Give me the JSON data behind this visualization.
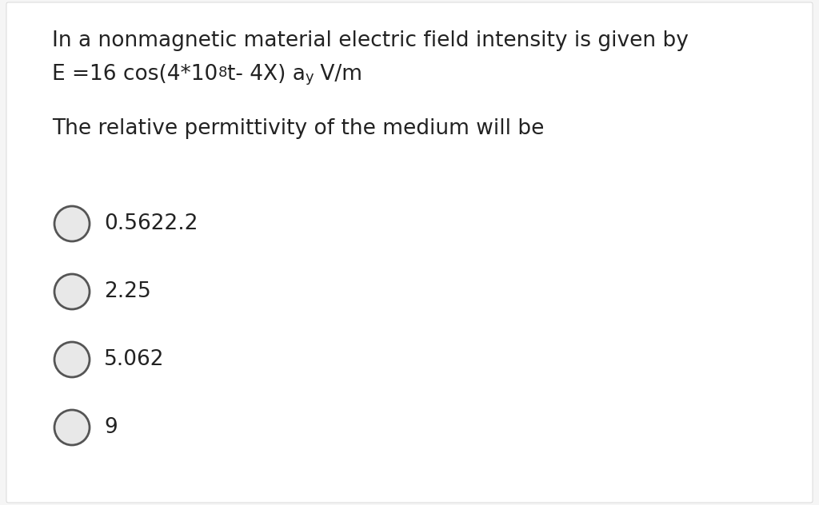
{
  "background_color": "#f5f5f5",
  "panel_color": "#ffffff",
  "text_color": "#222222",
  "line1": "In a nonmagnetic material electric field intensity is given by",
  "line3": "The relative permittivity of the medium will be",
  "options": [
    "0.5622.2",
    "2.25",
    "5.062",
    "9"
  ],
  "circle_edge_color": "#555555",
  "circle_face_color": "#e8e8e8",
  "font_size_main": 19,
  "font_size_option": 19,
  "font_size_super": 13,
  "font_size_sub": 13
}
